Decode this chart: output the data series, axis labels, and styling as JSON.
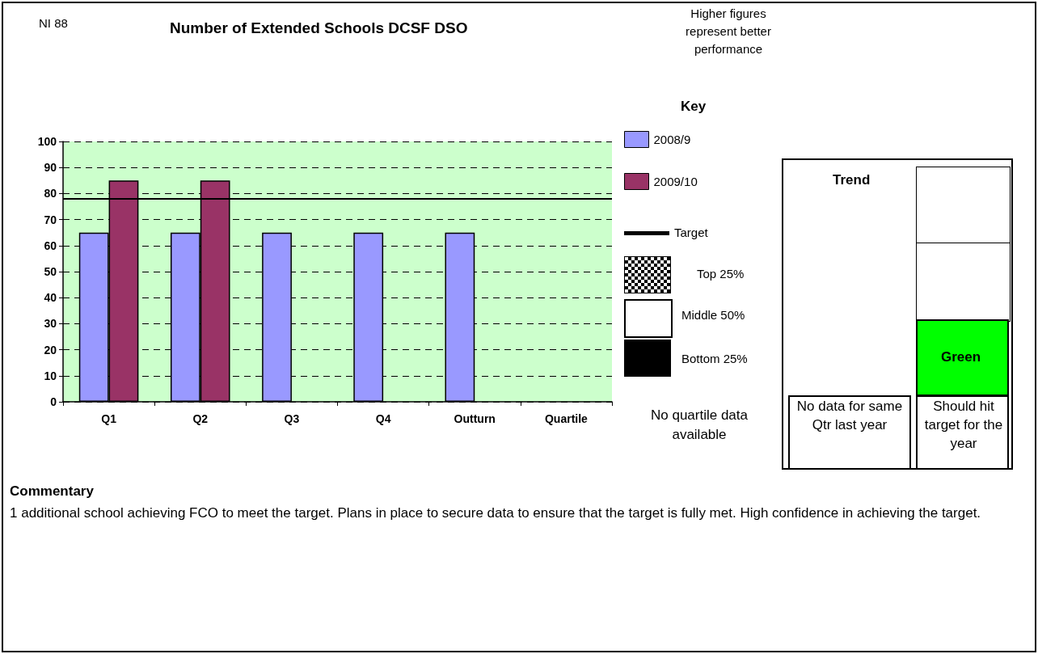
{
  "chart_data": {
    "type": "bar",
    "title": "Number of Extended Schools DCSF DSO",
    "categories": [
      "Q1",
      "Q2",
      "Q3",
      "Q4",
      "Outturn",
      "Quartile"
    ],
    "series": [
      {
        "name": "2008/9",
        "color": "#9999ff",
        "values": [
          65,
          65,
          65,
          65,
          65,
          null
        ]
      },
      {
        "name": "2009/10",
        "color": "#993366",
        "values": [
          85,
          85,
          null,
          null,
          null,
          null
        ]
      }
    ],
    "ylim": [
      0,
      100
    ],
    "yticks": [
      0,
      10,
      20,
      30,
      40,
      50,
      60,
      70,
      80,
      90,
      100
    ],
    "grid": "y",
    "legend": "right",
    "ref_lines": [
      {
        "axis": "y",
        "value": 78,
        "label": "Target",
        "color": "#000000"
      }
    ],
    "bands": [
      {
        "axis": "y",
        "from": 0,
        "to": 100,
        "label": null,
        "color": "#ccffcc"
      }
    ],
    "annotations": [
      "NI 88",
      "Higher figures represent better performance",
      "Key",
      "Top 25%",
      "Middle 50%",
      "Bottom 25%",
      "No quartile data available",
      "Trend",
      "Green",
      "No data for same Qtr last year",
      "Should hit target for the year",
      "Commentary",
      "1 additional school achieving FCO to meet the target. Plans in place to secure data to ensure that the target is fully met. High confidence in achieving the target."
    ]
  }
}
